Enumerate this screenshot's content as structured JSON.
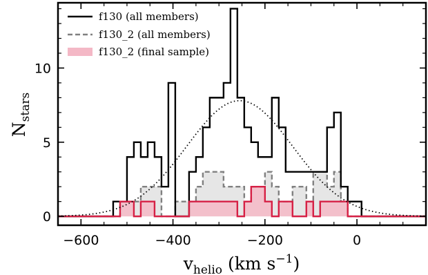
{
  "chart_data": {
    "type": "histogram",
    "xlabel": "v_helio (km s^-1)",
    "xlabel_main": "v",
    "xlabel_sub": "helio",
    "xlabel_unit_open": " (km s",
    "xlabel_unit_exp": "−1",
    "xlabel_unit_close": ")",
    "ylabel": "N_stars",
    "ylabel_main": "N",
    "ylabel_sub": "stars",
    "xlim": [
      -650,
      150
    ],
    "ylim": [
      -0.6,
      14.4
    ],
    "xticks": [
      -600,
      -400,
      -200,
      0
    ],
    "xtick_labels": [
      "−600",
      "−400",
      "−200",
      "0"
    ],
    "yticks": [
      0,
      5,
      10
    ],
    "ytick_labels": [
      "0",
      "5",
      "10"
    ],
    "grid": false,
    "legend_position": "top-left",
    "bin_width": 15,
    "series": [
      {
        "name": "f130 (all members)",
        "style": "solid-step",
        "color": "#000000",
        "bin_edges": [
          -650,
          -530,
          -515,
          -500,
          -485,
          -470,
          -455,
          -440,
          -425,
          -410,
          -395,
          -380,
          -365,
          -350,
          -335,
          -320,
          -305,
          -290,
          -275,
          -260,
          -245,
          -230,
          -215,
          -200,
          -185,
          -170,
          -155,
          -140,
          -125,
          -110,
          -95,
          -80,
          -65,
          -50,
          -35,
          -20,
          -5,
          10,
          25,
          40,
          150
        ],
        "counts": [
          0,
          1,
          1,
          4,
          5,
          4,
          5,
          4,
          2,
          9,
          0,
          0,
          3,
          4,
          6,
          8,
          8,
          9,
          14,
          8,
          6,
          5,
          4,
          4,
          8,
          6,
          3,
          3,
          3,
          3,
          3,
          3,
          6,
          7,
          2,
          1,
          1,
          0,
          0,
          0
        ]
      },
      {
        "name": "f130_2 (all members)",
        "style": "dashed-step-filled",
        "color": "#808080",
        "fill": "#e6e6e6",
        "bin_edges": [
          -650,
          -515,
          -500,
          -485,
          -470,
          -455,
          -440,
          -425,
          -410,
          -395,
          -380,
          -365,
          -350,
          -335,
          -320,
          -305,
          -290,
          -275,
          -260,
          -245,
          -230,
          -215,
          -200,
          -185,
          -170,
          -155,
          -140,
          -125,
          -110,
          -95,
          -80,
          -65,
          -50,
          -35,
          -20,
          150
        ],
        "counts": [
          0,
          1,
          1,
          1,
          2,
          2,
          2,
          0,
          0,
          1,
          1,
          1,
          2,
          3,
          3,
          3,
          2,
          2,
          2,
          1,
          2,
          2,
          3,
          2,
          1,
          1,
          2,
          2,
          1,
          3,
          3,
          2,
          3,
          1,
          0
        ]
      },
      {
        "name": "f130_2 (final sample)",
        "style": "solid-step-filled",
        "color": "#d62045",
        "fill": "#f4b8c6",
        "bin_edges": [
          -650,
          -515,
          -500,
          -485,
          -470,
          -455,
          -440,
          -425,
          -410,
          -395,
          -380,
          -365,
          -350,
          -335,
          -320,
          -305,
          -290,
          -275,
          -260,
          -245,
          -230,
          -215,
          -200,
          -185,
          -170,
          -155,
          -140,
          -125,
          -110,
          -95,
          -80,
          -65,
          -50,
          -35,
          -20,
          150
        ],
        "counts": [
          0,
          1,
          1,
          0,
          1,
          1,
          0,
          0,
          0,
          0,
          0,
          1,
          1,
          1,
          1,
          1,
          1,
          1,
          0,
          1,
          2,
          2,
          1,
          0,
          1,
          1,
          0,
          0,
          1,
          0,
          1,
          1,
          1,
          1,
          0
        ]
      }
    ],
    "gaussian_fit": {
      "style": "dotted",
      "color": "#000000",
      "amplitude": 7.8,
      "mean": -255,
      "sigma": 115
    }
  }
}
